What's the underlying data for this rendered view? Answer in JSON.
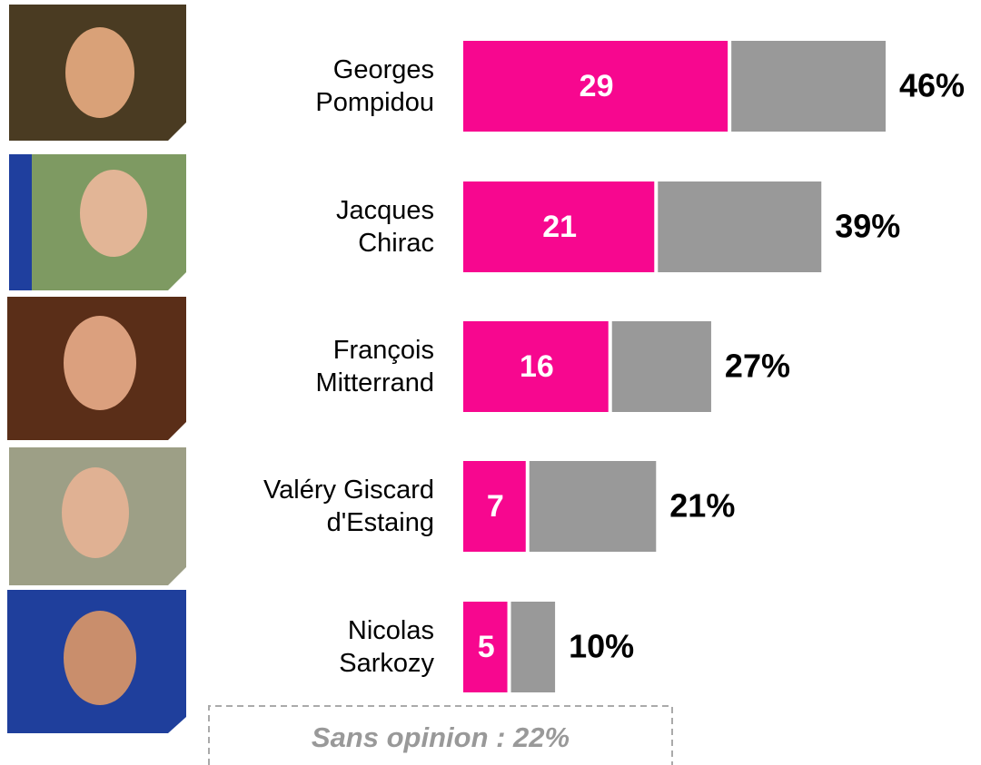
{
  "chart_data": {
    "type": "stacked-bar-horizontal",
    "categories": [
      "Georges\nPompidou",
      "Jacques\nChirac",
      "François\nMitterrand",
      "Valéry Giscard\nd'Estaing",
      "Nicolas\nSarkozy"
    ],
    "series": [
      {
        "color": "#f7078f",
        "values": [
          29,
          21,
          16,
          7,
          5
        ]
      },
      {
        "color": "#999999",
        "values": [
          17,
          18,
          11,
          14,
          5
        ]
      }
    ],
    "totals": [
      46,
      39,
      27,
      21,
      10
    ],
    "total_labels": [
      "46%",
      "39%",
      "27%",
      "21%",
      "10%"
    ],
    "annotation": "Sans opinion : 22%"
  }
}
